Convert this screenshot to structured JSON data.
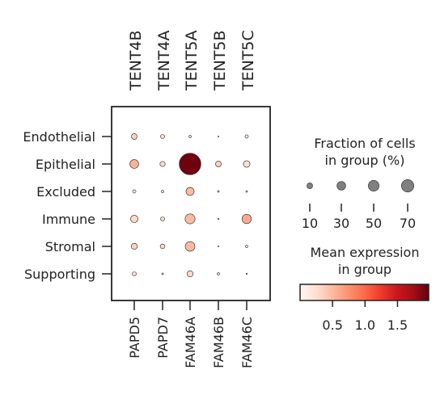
{
  "chart_data": {
    "type": "dotplot",
    "title": "",
    "xlabel": "",
    "ylabel": "",
    "x_top_labels": [
      "TENT4B",
      "TENT4A",
      "TENT5A",
      "TENT5B",
      "TENT5C"
    ],
    "x_bottom_labels": [
      "PAPD5",
      "PAPD7",
      "FAM46A",
      "FAM46B",
      "FAM46C"
    ],
    "categories": [
      "Endothelial",
      "Epithelial",
      "Excluded",
      "Immune",
      "Stromal",
      "Supporting"
    ],
    "fraction_pct": [
      [
        6,
        3,
        1,
        0.2,
        2
      ],
      [
        14,
        5,
        85,
        6,
        8
      ],
      [
        2,
        1,
        12,
        0.5,
        0.5
      ],
      [
        10,
        3,
        18,
        0.3,
        16
      ],
      [
        7,
        4,
        17,
        0.2,
        1
      ],
      [
        3,
        0.5,
        7,
        1,
        0.3
      ]
    ],
    "mean_expression": [
      [
        0.35,
        0.25,
        0.15,
        0.05,
        0.2
      ],
      [
        0.55,
        0.3,
        1.95,
        0.35,
        0.25
      ],
      [
        0.2,
        0.1,
        0.5,
        0.05,
        0.05
      ],
      [
        0.3,
        0.3,
        0.5,
        0.05,
        0.6
      ],
      [
        0.35,
        0.3,
        0.5,
        0.05,
        0.1
      ],
      [
        0.25,
        0.05,
        0.3,
        0.15,
        0.05
      ]
    ],
    "size_legend": {
      "title_line1": "Fraction of cells",
      "title_line2": "in group (%)",
      "values": [
        10,
        30,
        50,
        70
      ],
      "labels": [
        "10",
        "30",
        "50",
        "70"
      ]
    },
    "color_legend": {
      "title_line1": "Mean expression",
      "title_line2": "in group",
      "ticks": [
        0.5,
        1.0,
        1.5
      ],
      "tick_labels": [
        "0.5",
        "1.0",
        "1.5"
      ],
      "range": [
        0.0,
        1.98
      ],
      "colormap": "Reds",
      "stops": [
        "#fff5f0",
        "#fee0d2",
        "#fcbba1",
        "#fc9272",
        "#fb6a4a",
        "#ef3b2c",
        "#cb181d",
        "#a50f15",
        "#67000d"
      ]
    }
  }
}
